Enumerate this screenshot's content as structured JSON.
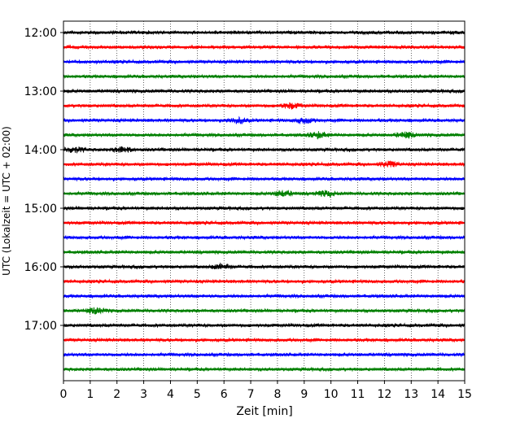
{
  "chart_data": {
    "type": "line",
    "xlabel": "Zeit  [min]",
    "ylabel": "UTC (Lokalzeit = UTC + 02:00)",
    "xlim": [
      0,
      15
    ],
    "x_ticks": [
      "0",
      "1",
      "2",
      "3",
      "4",
      "5",
      "6",
      "7",
      "8",
      "9",
      "10",
      "11",
      "12",
      "13",
      "14",
      "15"
    ],
    "y_ticks": [
      "12:00",
      "13:00",
      "14:00",
      "15:00",
      "16:00",
      "17:00"
    ],
    "trace_interval_minutes": 15,
    "first_trace": "12:00",
    "last_trace": "17:45",
    "grid": "vertical dotted at each minute",
    "trace_colors": [
      "#000000",
      "#ff0000",
      "#0000ff",
      "#008000"
    ],
    "traces": [
      {
        "start": "12:00",
        "color": "#000000"
      },
      {
        "start": "12:15",
        "color": "#ff0000"
      },
      {
        "start": "12:30",
        "color": "#0000ff"
      },
      {
        "start": "12:45",
        "color": "#008000"
      },
      {
        "start": "13:00",
        "color": "#000000"
      },
      {
        "start": "13:15",
        "color": "#ff0000",
        "events": [
          8.5
        ]
      },
      {
        "start": "13:30",
        "color": "#0000ff",
        "events": [
          6.5,
          9.0
        ]
      },
      {
        "start": "13:45",
        "color": "#008000",
        "events": [
          9.5,
          12.8
        ]
      },
      {
        "start": "14:00",
        "color": "#000000",
        "events": [
          0.4,
          2.2
        ]
      },
      {
        "start": "14:15",
        "color": "#ff0000",
        "events": [
          12.2
        ]
      },
      {
        "start": "14:30",
        "color": "#0000ff"
      },
      {
        "start": "14:45",
        "color": "#008000",
        "events": [
          8.2,
          9.8
        ]
      },
      {
        "start": "15:00",
        "color": "#000000"
      },
      {
        "start": "15:15",
        "color": "#ff0000"
      },
      {
        "start": "15:30",
        "color": "#0000ff"
      },
      {
        "start": "15:45",
        "color": "#008000"
      },
      {
        "start": "16:00",
        "color": "#000000",
        "events": [
          5.9
        ]
      },
      {
        "start": "16:15",
        "color": "#ff0000"
      },
      {
        "start": "16:30",
        "color": "#0000ff"
      },
      {
        "start": "16:45",
        "color": "#008000",
        "events": [
          1.2
        ]
      },
      {
        "start": "17:00",
        "color": "#000000"
      },
      {
        "start": "17:15",
        "color": "#ff0000"
      },
      {
        "start": "17:30",
        "color": "#0000ff"
      },
      {
        "start": "17:45",
        "color": "#008000"
      }
    ]
  }
}
